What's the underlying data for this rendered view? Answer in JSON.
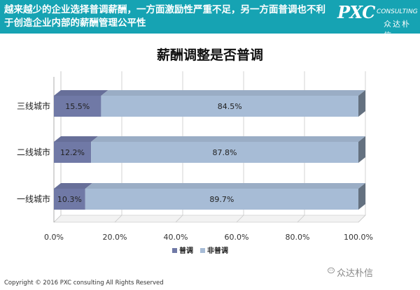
{
  "header": {
    "text": "越来越少的企业选择普调薪酬，一方面激励性严重不足，另一方面普调也不利于创造企业内部的薪酬管理公平性"
  },
  "logo": {
    "main": "PXC",
    "sub": "CONSULTING",
    "cn": "众达朴信"
  },
  "chart_data": {
    "type": "bar",
    "orientation": "horizontal",
    "stacked": true,
    "title": "薪酬调整是否普调",
    "categories": [
      "三线城市",
      "二线城市",
      "一线城市"
    ],
    "series": [
      {
        "name": "普调",
        "color": "#7079a6",
        "values": [
          15.5,
          12.2,
          10.3
        ],
        "labels": [
          "15.5%",
          "12.2%",
          "10.3%"
        ]
      },
      {
        "name": "非普调",
        "color": "#a7bcd6",
        "values": [
          84.5,
          87.8,
          89.7
        ],
        "labels": [
          "84.5%",
          "87.8%",
          "89.7%"
        ]
      }
    ],
    "xlim": [
      0,
      100
    ],
    "xticks": [
      "0.0%",
      "20.0%",
      "40.0%",
      "60.0%",
      "80.0%",
      "100.0%"
    ],
    "legend_position": "bottom",
    "grid": true
  },
  "footer": {
    "copyright": "Copyright © 2016  PXC consulting All Rights Reserved",
    "wechat": "众达朴信"
  }
}
